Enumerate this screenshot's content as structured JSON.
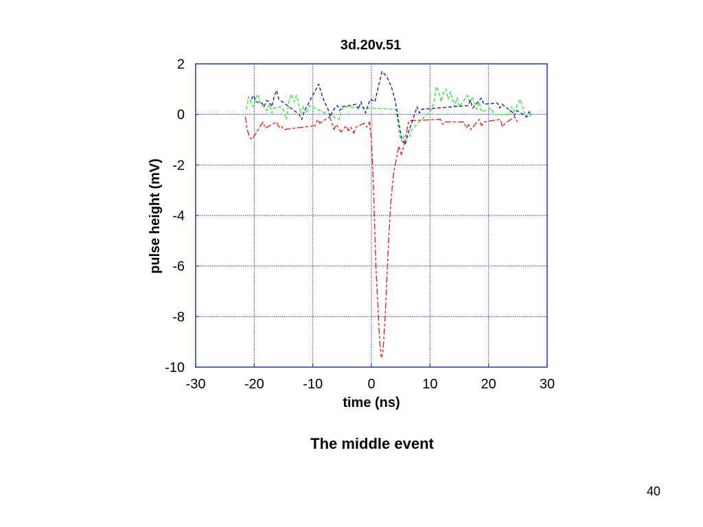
{
  "slide": {
    "caption": "The middle event",
    "page_number": "40"
  },
  "chart_data": {
    "type": "line",
    "title": "3d.20v.51",
    "xlabel": "time (ns)",
    "ylabel": "pulse height (mV)",
    "xlim": [
      -30,
      30
    ],
    "ylim": [
      -10,
      2
    ],
    "xticks": [
      "-30",
      "-20",
      "-10",
      "0",
      "10",
      "20",
      "30"
    ],
    "yticks": [
      "2",
      "0",
      "-2",
      "-4",
      "-6",
      "-8",
      "-10"
    ],
    "grid": true,
    "colors": {
      "axis": "#2233aa",
      "grid": "#2233aa",
      "red": "#e8201a",
      "green": "#2ee82e",
      "blue": "#1a1aaa"
    },
    "series": [
      {
        "color": "red",
        "values": [
          [
            -21.5,
            -0.1
          ],
          [
            -21.2,
            -0.6
          ],
          [
            -20.8,
            -0.9
          ],
          [
            -20.4,
            -1.0
          ],
          [
            -18.9,
            -0.45
          ],
          [
            -18.5,
            -0.3
          ],
          [
            -18.1,
            -0.55
          ],
          [
            -16.2,
            -0.3
          ],
          [
            -15.8,
            -0.5
          ],
          [
            -15.4,
            -0.45
          ],
          [
            -15.0,
            -0.6
          ],
          [
            -9.6,
            -0.45
          ],
          [
            -9.2,
            -0.2
          ],
          [
            -8.8,
            -0.35
          ],
          [
            -7.2,
            -0.1
          ],
          [
            -6.8,
            -0.3
          ],
          [
            -6.4,
            -0.6
          ],
          [
            -6.0,
            -0.4
          ],
          [
            -5.6,
            -0.55
          ],
          [
            -5.2,
            -0.7
          ],
          [
            -4.3,
            -0.45
          ],
          [
            -3.9,
            -0.65
          ],
          [
            -3.5,
            -0.5
          ],
          [
            -3.0,
            -0.75
          ],
          [
            -2.6,
            -0.5
          ],
          [
            -1.2,
            -0.35
          ],
          [
            -0.8,
            -0.5
          ],
          [
            -0.3,
            -0.3
          ],
          [
            0.0,
            -1.0
          ],
          [
            0.3,
            -2.5
          ],
          [
            0.5,
            -4.0
          ],
          [
            0.7,
            -5.5
          ],
          [
            0.9,
            -6.7
          ],
          [
            1.1,
            -7.5
          ],
          [
            1.3,
            -8.5
          ],
          [
            1.5,
            -9.2
          ],
          [
            1.7,
            -9.6
          ],
          [
            1.9,
            -9.5
          ],
          [
            2.1,
            -9.0
          ],
          [
            2.3,
            -8.2
          ],
          [
            2.5,
            -7.3
          ],
          [
            2.7,
            -6.2
          ],
          [
            2.9,
            -5.2
          ],
          [
            3.1,
            -4.3
          ],
          [
            3.3,
            -3.5
          ],
          [
            3.5,
            -3.0
          ],
          [
            3.8,
            -2.3
          ],
          [
            4.7,
            -1.25
          ],
          [
            5.1,
            -1.6
          ],
          [
            5.5,
            -1.3
          ],
          [
            6.0,
            -0.7
          ],
          [
            6.4,
            -0.25
          ],
          [
            11.8,
            -0.2
          ],
          [
            12.2,
            -0.4
          ],
          [
            12.6,
            -0.3
          ],
          [
            15.8,
            -0.3
          ],
          [
            16.2,
            -0.55
          ],
          [
            16.6,
            -0.4
          ],
          [
            17.0,
            -0.6
          ],
          [
            18.4,
            -0.2
          ],
          [
            18.8,
            -0.45
          ],
          [
            19.2,
            -0.3
          ],
          [
            22.0,
            -0.2
          ],
          [
            22.4,
            -0.5
          ],
          [
            22.8,
            -0.35
          ],
          [
            24.5,
            -0.1
          ],
          [
            24.9,
            -0.3
          ]
        ]
      },
      {
        "color": "green",
        "values": [
          [
            -21.3,
            0.2
          ],
          [
            -21.0,
            0.7
          ],
          [
            -20.6,
            0.5
          ],
          [
            -20.2,
            0.3
          ],
          [
            -19.8,
            0.6
          ],
          [
            -19.4,
            0.8
          ],
          [
            -19.0,
            0.45
          ],
          [
            -17.8,
            0.15
          ],
          [
            -17.4,
            0.4
          ],
          [
            -17.0,
            0.05
          ],
          [
            -16.6,
            0.25
          ],
          [
            -15.3,
            0.3
          ],
          [
            -14.9,
            0.1
          ],
          [
            -14.5,
            -0.2
          ],
          [
            -14.0,
            0.6
          ],
          [
            -13.6,
            0.8
          ],
          [
            -13.2,
            0.5
          ],
          [
            -12.8,
            0.75
          ],
          [
            -12.4,
            0.4
          ],
          [
            -12.0,
            0.0
          ],
          [
            -11.6,
            0.3
          ],
          [
            -11.0,
            0.05
          ],
          [
            -10.6,
            0.35
          ],
          [
            -5.5,
            -0.2
          ],
          [
            -5.1,
            0.15
          ],
          [
            -4.7,
            0.3
          ],
          [
            4.2,
            0.2
          ],
          [
            4.6,
            -0.5
          ],
          [
            5.0,
            -1.0
          ],
          [
            5.3,
            -1.1
          ],
          [
            5.6,
            -0.8
          ],
          [
            6.5,
            -0.9
          ],
          [
            6.9,
            -0.6
          ],
          [
            10.3,
            0.2
          ],
          [
            10.7,
            0.5
          ],
          [
            11.1,
            1.1
          ],
          [
            11.5,
            0.9
          ],
          [
            11.9,
            0.5
          ],
          [
            12.3,
            0.85
          ],
          [
            12.7,
            1.0
          ],
          [
            13.1,
            0.6
          ],
          [
            13.5,
            0.9
          ],
          [
            14.2,
            0.3
          ],
          [
            14.6,
            0.65
          ],
          [
            15.0,
            0.3
          ],
          [
            16.4,
            0.75
          ],
          [
            16.8,
            0.45
          ],
          [
            17.2,
            0.7
          ],
          [
            18.0,
            0.2
          ],
          [
            18.4,
            0.5
          ],
          [
            18.8,
            0.1
          ],
          [
            20.5,
            0.25
          ],
          [
            20.9,
            0.0
          ],
          [
            23.5,
            0.0
          ],
          [
            23.9,
            0.3
          ],
          [
            24.3,
            0.1
          ],
          [
            25.0,
            0.4
          ],
          [
            25.4,
            0.6
          ],
          [
            25.8,
            0.3
          ],
          [
            26.2,
            -0.1
          ],
          [
            27.0,
            -0.1
          ],
          [
            27.4,
            0.1
          ]
        ]
      },
      {
        "color": "blue",
        "values": [
          [
            -20.5,
            0.6
          ],
          [
            -20.1,
            0.75
          ],
          [
            -19.7,
            0.5
          ],
          [
            -18.7,
            0.45
          ],
          [
            -18.3,
            0.3
          ],
          [
            -17.9,
            0.55
          ],
          [
            -17.4,
            0.5
          ],
          [
            -17.0,
            0.3
          ],
          [
            -16.6,
            0.7
          ],
          [
            -16.2,
            0.95
          ],
          [
            -15.8,
            0.6
          ],
          [
            -12.3,
            0.0
          ],
          [
            -11.9,
            -0.2
          ],
          [
            -11.5,
            0.1
          ],
          [
            -9.0,
            1.2
          ],
          [
            -8.6,
            0.9
          ],
          [
            -8.2,
            0.6
          ],
          [
            -7.8,
            0.4
          ],
          [
            -7.4,
            0.2
          ],
          [
            -7.0,
            -0.1
          ],
          [
            -6.6,
            0.15
          ],
          [
            -5.8,
            0.35
          ],
          [
            -5.4,
            0.15
          ],
          [
            -5.0,
            0.3
          ],
          [
            -2.6,
            0.4
          ],
          [
            -2.2,
            0.2
          ],
          [
            -1.8,
            0.5
          ],
          [
            -1.0,
            0.05
          ],
          [
            -0.6,
            0.35
          ],
          [
            -0.2,
            0.6
          ],
          [
            0.6,
            0.5
          ],
          [
            1.0,
            0.9
          ],
          [
            1.4,
            1.3
          ],
          [
            1.8,
            1.7
          ],
          [
            2.6,
            1.5
          ],
          [
            3.0,
            1.3
          ],
          [
            3.4,
            1.1
          ],
          [
            4.0,
            0.6
          ],
          [
            4.4,
            0.1
          ],
          [
            4.8,
            -0.5
          ],
          [
            5.2,
            -1.0
          ],
          [
            5.8,
            -1.2
          ],
          [
            6.2,
            -0.8
          ],
          [
            7.8,
            0.3
          ],
          [
            8.2,
            0.05
          ],
          [
            8.6,
            0.2
          ],
          [
            16.5,
            0.35
          ],
          [
            16.9,
            0.55
          ],
          [
            17.3,
            0.25
          ],
          [
            18.8,
            0.65
          ],
          [
            19.2,
            0.4
          ],
          [
            21.5,
            0.45
          ],
          [
            21.9,
            0.25
          ],
          [
            22.3,
            0.4
          ],
          [
            24.0,
            0.1
          ],
          [
            24.4,
            -0.05
          ],
          [
            24.8,
            0.15
          ],
          [
            26.5,
            -0.1
          ],
          [
            26.9,
            0.1
          ],
          [
            27.3,
            0.0
          ]
        ]
      }
    ]
  }
}
